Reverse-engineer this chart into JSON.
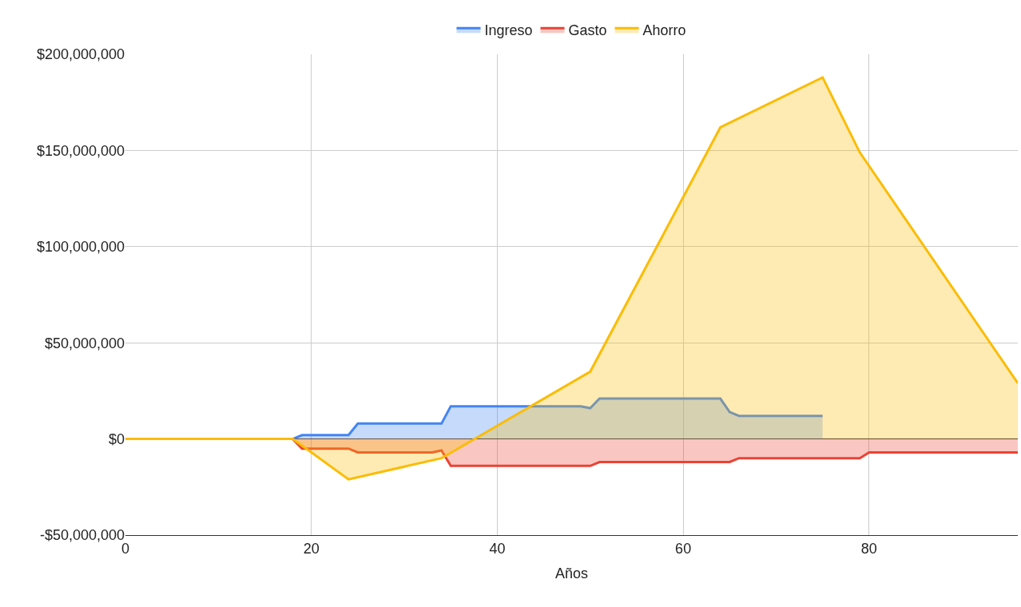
{
  "chart_data": {
    "type": "area",
    "xlabel": "Años",
    "xlim": [
      0,
      96
    ],
    "xticks": [
      0,
      20,
      40,
      60,
      80
    ],
    "ylim": [
      -50000000,
      200000000
    ],
    "yticks": [
      {
        "value": -50000000,
        "label": "-$50,000,000"
      },
      {
        "value": 0,
        "label": "$0"
      },
      {
        "value": 50000000,
        "label": "$50,000,000"
      },
      {
        "value": 100000000,
        "label": "$100,000,000"
      },
      {
        "value": 150000000,
        "label": "$150,000,000"
      },
      {
        "value": 200000000,
        "label": "$200,000,000"
      }
    ],
    "grid": true,
    "legend": "top",
    "series": [
      {
        "name": "Ingreso",
        "color": "#4285f4",
        "x": [
          0,
          18,
          19,
          23,
          24,
          25,
          33,
          34,
          35,
          49,
          50,
          51,
          63,
          64,
          65,
          66,
          75
        ],
        "values": [
          0,
          0,
          2000000,
          2000000,
          2000000,
          8000000,
          8000000,
          8000000,
          17000000,
          17000000,
          16000000,
          21000000,
          21000000,
          21000000,
          14000000,
          12000000,
          12000000
        ]
      },
      {
        "name": "Gasto",
        "color": "#ea4335",
        "x": [
          0,
          18,
          19,
          23,
          24,
          25,
          33,
          34,
          35,
          49,
          50,
          51,
          64,
          65,
          66,
          78,
          79,
          80,
          96
        ],
        "values": [
          0,
          0,
          -5000000,
          -5000000,
          -5000000,
          -7000000,
          -7000000,
          -6000000,
          -14000000,
          -14000000,
          -14000000,
          -12000000,
          -12000000,
          -12000000,
          -10000000,
          -10000000,
          -10000000,
          -7000000,
          -7000000
        ]
      },
      {
        "name": "Ahorro",
        "color": "#fbbc04",
        "x": [
          0,
          17,
          18,
          24,
          34,
          50,
          64,
          75,
          79,
          96
        ],
        "values": [
          0,
          0,
          0,
          -21000000,
          -10000000,
          35000000,
          162000000,
          188000000,
          149000000,
          29000000
        ]
      }
    ]
  }
}
